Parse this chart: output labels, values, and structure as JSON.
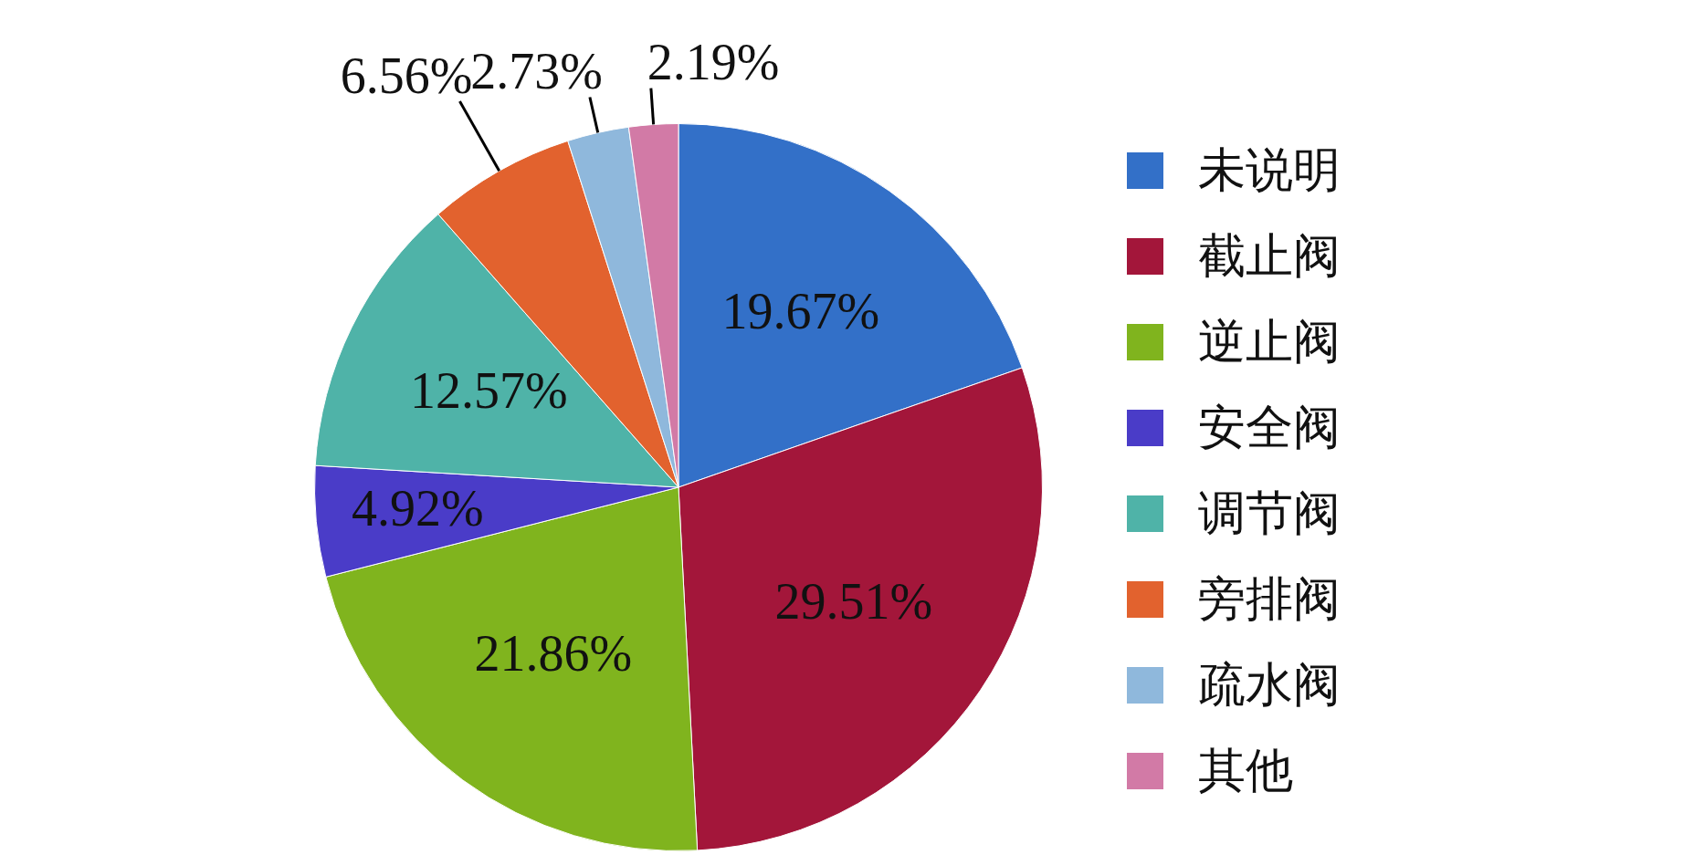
{
  "chart_data": {
    "type": "pie",
    "categories": [
      "未说明",
      "截止阀",
      "逆止阀",
      "安全阀",
      "调节阀",
      "旁排阀",
      "疏水阀",
      "其他"
    ],
    "values": [
      19.67,
      29.51,
      21.86,
      4.92,
      12.57,
      6.56,
      2.73,
      2.19
    ],
    "colors": [
      "#3370c8",
      "#a3163a",
      "#80b41e",
      "#4a3cc8",
      "#4fb3a8",
      "#e2622e",
      "#8fb8dc",
      "#d27aa6"
    ],
    "value_labels": [
      "19.67%",
      "29.51%",
      "21.86%",
      "4.92%",
      "12.57%",
      "6.56%",
      "2.73%",
      "2.19%"
    ],
    "legend": "right"
  }
}
